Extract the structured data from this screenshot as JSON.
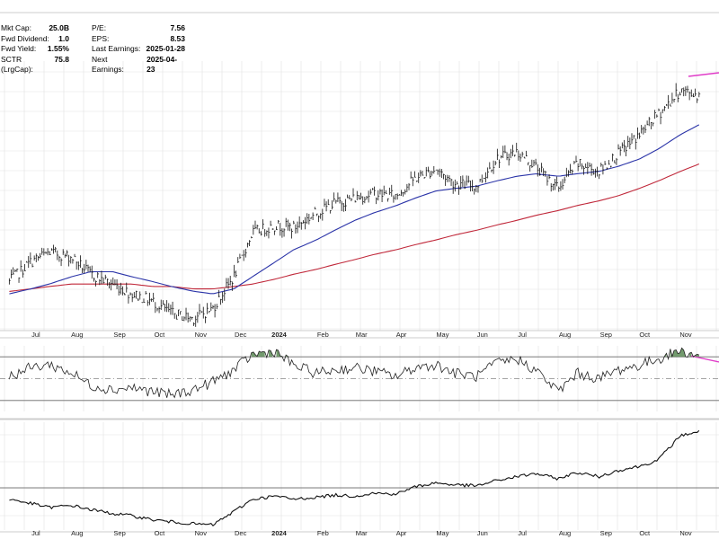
{
  "stats": {
    "left": [
      {
        "label": "Mkt Cap:",
        "value": "25.0B"
      },
      {
        "label": "Fwd Dividend:",
        "value": "1.0"
      },
      {
        "label": "Fwd Yield:",
        "value": "1.55%"
      },
      {
        "label": "SCTR (LrgCap):",
        "value": "75.8"
      }
    ],
    "right": [
      {
        "label": "P/E:",
        "value": "7.56"
      },
      {
        "label": "EPS:",
        "value": "8.53"
      },
      {
        "label": "Last Earnings:",
        "value": "2025-01-28"
      },
      {
        "label": "Next Earnings:",
        "value": "2025-04-23"
      }
    ]
  },
  "colors": {
    "price": "#111111",
    "ma50": "#2b34a8",
    "ma200": "#c0283a",
    "trendline": "#e03cc8",
    "rsi_fill": "#5a8a55",
    "grid": "#e2e2e2"
  },
  "chart_data": [
    {
      "panel": "price",
      "type": "line",
      "subtype": "ohlc-bars",
      "x_tick_labels": [
        "Jul",
        "Aug",
        "Sep",
        "Oct",
        "Nov",
        "Dec",
        "2024",
        "Feb",
        "Mar",
        "Apr",
        "May",
        "Jun",
        "Jul",
        "Aug",
        "Sep",
        "Oct",
        "Nov"
      ],
      "x": [
        "2023-06-15",
        "2023-07-01",
        "2023-07-15",
        "2023-08-01",
        "2023-08-15",
        "2023-09-01",
        "2023-09-15",
        "2023-10-01",
        "2023-10-15",
        "2023-11-01",
        "2023-11-15",
        "2023-12-01",
        "2023-12-15",
        "2024-01-01",
        "2024-01-15",
        "2024-02-01",
        "2024-02-15",
        "2024-03-01",
        "2024-03-15",
        "2024-04-01",
        "2024-04-15",
        "2024-05-01",
        "2024-05-15",
        "2024-06-01",
        "2024-06-15",
        "2024-07-01",
        "2024-07-15",
        "2024-08-01",
        "2024-08-15",
        "2024-09-01",
        "2024-09-15",
        "2024-10-01",
        "2024-10-15",
        "2024-11-01",
        "2024-11-15"
      ],
      "series": [
        {
          "values": [
            0.1,
            0.18,
            0.22,
            0.2,
            0.13,
            0.09,
            0.05,
            0.02,
            -0.03,
            -0.05,
            -0.01,
            0.12,
            0.3,
            0.33,
            0.32,
            0.38,
            0.42,
            0.44,
            0.46,
            0.45,
            0.52,
            0.56,
            0.5,
            0.49,
            0.6,
            0.63,
            0.57,
            0.48,
            0.58,
            0.55,
            0.62,
            0.7,
            0.78,
            0.88,
            0.86
          ]
        },
        {
          "values": [
            0.05,
            0.07,
            0.09,
            0.12,
            0.14,
            0.14,
            0.12,
            0.1,
            0.08,
            0.06,
            0.05,
            0.07,
            0.12,
            0.18,
            0.23,
            0.27,
            0.31,
            0.35,
            0.38,
            0.41,
            0.44,
            0.47,
            0.48,
            0.49,
            0.51,
            0.53,
            0.54,
            0.53,
            0.54,
            0.55,
            0.57,
            0.6,
            0.64,
            0.7,
            0.74
          ]
        },
        {
          "values": [
            0.06,
            0.07,
            0.08,
            0.09,
            0.09,
            0.09,
            0.09,
            0.08,
            0.08,
            0.07,
            0.07,
            0.08,
            0.09,
            0.11,
            0.13,
            0.15,
            0.17,
            0.19,
            0.21,
            0.23,
            0.25,
            0.27,
            0.29,
            0.31,
            0.33,
            0.35,
            0.37,
            0.39,
            0.41,
            0.43,
            0.45,
            0.48,
            0.51,
            0.55,
            0.58
          ]
        }
      ]
    },
    {
      "panel": "rsi",
      "type": "line",
      "x": [
        "2023-06-15",
        "2023-07-01",
        "2023-07-15",
        "2023-08-01",
        "2023-08-15",
        "2023-09-01",
        "2023-09-15",
        "2023-10-01",
        "2023-10-15",
        "2023-11-01",
        "2023-11-15",
        "2023-12-01",
        "2023-12-15",
        "2024-01-01",
        "2024-01-15",
        "2024-02-01",
        "2024-02-15",
        "2024-03-01",
        "2024-03-15",
        "2024-04-01",
        "2024-04-15",
        "2024-05-01",
        "2024-05-15",
        "2024-06-01",
        "2024-06-15",
        "2024-07-01",
        "2024-07-15",
        "2024-08-01",
        "2024-08-15",
        "2024-09-01",
        "2024-09-15",
        "2024-10-01",
        "2024-10-15",
        "2024-11-01",
        "2024-11-15"
      ],
      "series": [
        {
          "values": [
            52,
            60,
            63,
            55,
            44,
            40,
            42,
            38,
            35,
            40,
            47,
            58,
            72,
            75,
            62,
            55,
            58,
            60,
            57,
            52,
            60,
            63,
            55,
            52,
            64,
            68,
            58,
            38,
            55,
            50,
            58,
            62,
            68,
            76,
            70
          ]
        }
      ],
      "reference_lines": [
        70,
        50,
        30
      ],
      "ylim": [
        20,
        80
      ]
    },
    {
      "panel": "relative-strength",
      "type": "line",
      "x": [
        "2023-06-15",
        "2023-07-01",
        "2023-07-15",
        "2023-08-01",
        "2023-08-15",
        "2023-09-01",
        "2023-09-15",
        "2023-10-01",
        "2023-10-15",
        "2023-11-01",
        "2023-11-15",
        "2023-12-01",
        "2023-12-15",
        "2024-01-01",
        "2024-01-15",
        "2024-02-01",
        "2024-02-15",
        "2024-03-01",
        "2024-03-15",
        "2024-04-01",
        "2024-04-15",
        "2024-05-01",
        "2024-05-15",
        "2024-06-01",
        "2024-06-15",
        "2024-07-01",
        "2024-07-15",
        "2024-08-01",
        "2024-08-15",
        "2024-09-01",
        "2024-09-15",
        "2024-10-01",
        "2024-10-15",
        "2024-11-01",
        "2024-11-15"
      ],
      "series": [
        {
          "values": [
            0.3,
            0.26,
            0.22,
            0.24,
            0.2,
            0.16,
            0.14,
            0.1,
            0.08,
            0.06,
            0.05,
            0.18,
            0.3,
            0.33,
            0.3,
            0.32,
            0.34,
            0.33,
            0.36,
            0.35,
            0.42,
            0.46,
            0.44,
            0.43,
            0.48,
            0.52,
            0.55,
            0.5,
            0.56,
            0.52,
            0.58,
            0.62,
            0.68,
            0.92,
            0.96
          ]
        }
      ]
    }
  ]
}
